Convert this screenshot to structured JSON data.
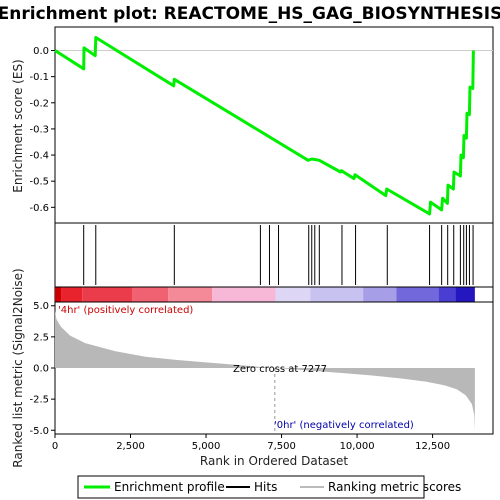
{
  "chart_data": {
    "type": "line",
    "title": "Enrichment plot: REACTOME_HS_GAG_BIOSYNTHESIS",
    "top_panel": {
      "ylabel": "Enrichment score (ES)",
      "ylim": [
        -0.66,
        0.09
      ],
      "yticks": [
        0.0,
        -0.1,
        -0.2,
        -0.3,
        -0.4,
        -0.5,
        -0.6
      ],
      "ytick_labels": [
        "0.0",
        "-0.1",
        "-0.2",
        "-0.3",
        "-0.4",
        "-0.5",
        "-0.6"
      ]
    },
    "bottom_panel": {
      "ylabel": "Ranked list metric (Signal2Noise)",
      "ylim": [
        -5.3,
        5.3
      ],
      "yticks": [
        5.0,
        2.5,
        0.0,
        -2.5,
        -5.0
      ],
      "ytick_labels": [
        "5.0",
        "2.5",
        "0.0",
        "-2.5",
        "-5.0"
      ],
      "metric_curve": [
        [
          0,
          4.6
        ],
        [
          50,
          3.9
        ],
        [
          200,
          3.3
        ],
        [
          500,
          2.6
        ],
        [
          1000,
          2.0
        ],
        [
          2000,
          1.35
        ],
        [
          3000,
          0.9
        ],
        [
          4000,
          0.65
        ],
        [
          5000,
          0.45
        ],
        [
          6000,
          0.25
        ],
        [
          7277,
          0.0
        ],
        [
          8500,
          -0.22
        ],
        [
          9500,
          -0.4
        ],
        [
          10500,
          -0.6
        ],
        [
          11500,
          -0.85
        ],
        [
          12300,
          -1.1
        ],
        [
          12900,
          -1.4
        ],
        [
          13300,
          -1.7
        ],
        [
          13600,
          -2.2
        ],
        [
          13800,
          -2.9
        ],
        [
          13880,
          -3.8
        ],
        [
          13900,
          -5.0
        ]
      ]
    },
    "x": {
      "label": "Rank in Ordered Dataset",
      "xlim": [
        0,
        14500
      ],
      "ticks": [
        0,
        2500,
        5000,
        7500,
        10000,
        12500
      ],
      "tick_labels": [
        "0",
        "2,500",
        "5,000",
        "7,500",
        "10,000",
        "12,500"
      ]
    },
    "series": [
      {
        "name": "Enrichment profile",
        "color": "#00ee00",
        "points": [
          [
            0,
            0.0
          ],
          [
            950,
            -0.07
          ],
          [
            960,
            0.01
          ],
          [
            1330,
            -0.02
          ],
          [
            1350,
            0.05
          ],
          [
            3930,
            -0.135
          ],
          [
            3950,
            -0.11
          ],
          [
            8380,
            -0.42
          ],
          [
            8500,
            -0.415
          ],
          [
            8750,
            -0.42
          ],
          [
            9450,
            -0.465
          ],
          [
            9480,
            -0.46
          ],
          [
            9900,
            -0.49
          ],
          [
            9930,
            -0.475
          ],
          [
            10950,
            -0.555
          ],
          [
            10980,
            -0.53
          ],
          [
            12400,
            -0.625
          ],
          [
            12430,
            -0.58
          ],
          [
            12800,
            -0.61
          ],
          [
            12830,
            -0.565
          ],
          [
            12990,
            -0.585
          ],
          [
            13010,
            -0.515
          ],
          [
            13190,
            -0.53
          ],
          [
            13210,
            -0.465
          ],
          [
            13420,
            -0.48
          ],
          [
            13440,
            -0.4
          ],
          [
            13520,
            -0.41
          ],
          [
            13540,
            -0.325
          ],
          [
            13620,
            -0.335
          ],
          [
            13640,
            -0.24
          ],
          [
            13720,
            -0.245
          ],
          [
            13740,
            -0.14
          ],
          [
            13830,
            -0.145
          ],
          [
            13850,
            0.0
          ]
        ]
      }
    ],
    "hits": [
      950,
      1350,
      3950,
      6800,
      7100,
      7400,
      8400,
      8500,
      8600,
      8750,
      9500,
      9950,
      11000,
      12400,
      12800,
      13000,
      13200,
      13420,
      13530,
      13620,
      13720,
      13840
    ],
    "hits_color": "#000000",
    "color_bar": [
      {
        "from": 0,
        "to": 200,
        "color": "#cc0000"
      },
      {
        "from": 200,
        "to": 900,
        "color": "#e8232e"
      },
      {
        "from": 900,
        "to": 2550,
        "color": "#ea3c4a"
      },
      {
        "from": 2550,
        "to": 3750,
        "color": "#f06272"
      },
      {
        "from": 3750,
        "to": 5200,
        "color": "#f48a98"
      },
      {
        "from": 5200,
        "to": 7300,
        "color": "#f7b8d8"
      },
      {
        "from": 7300,
        "to": 8450,
        "color": "#ddd6f4"
      },
      {
        "from": 8450,
        "to": 10200,
        "color": "#c8c2f0"
      },
      {
        "from": 10200,
        "to": 11300,
        "color": "#a79ee8"
      },
      {
        "from": 11300,
        "to": 12700,
        "color": "#7268dc"
      },
      {
        "from": 12700,
        "to": 13250,
        "color": "#4a3ed2"
      },
      {
        "from": 13250,
        "to": 13900,
        "color": "#2417c0"
      }
    ],
    "annotations": {
      "positive": "'4hr' (positively correlated)",
      "negative": "'0hr' (negatively correlated)",
      "zero_cross": "Zero cross at 7277",
      "zero_cross_rank": 7277
    },
    "legend": {
      "placement": "bottom",
      "entries": [
        {
          "label": "Enrichment profile",
          "color": "#00ee00"
        },
        {
          "label": "Hits",
          "color": "#000000"
        },
        {
          "label": "Ranking metric scores",
          "color": "#bbbbbb"
        }
      ]
    },
    "grid": false
  }
}
